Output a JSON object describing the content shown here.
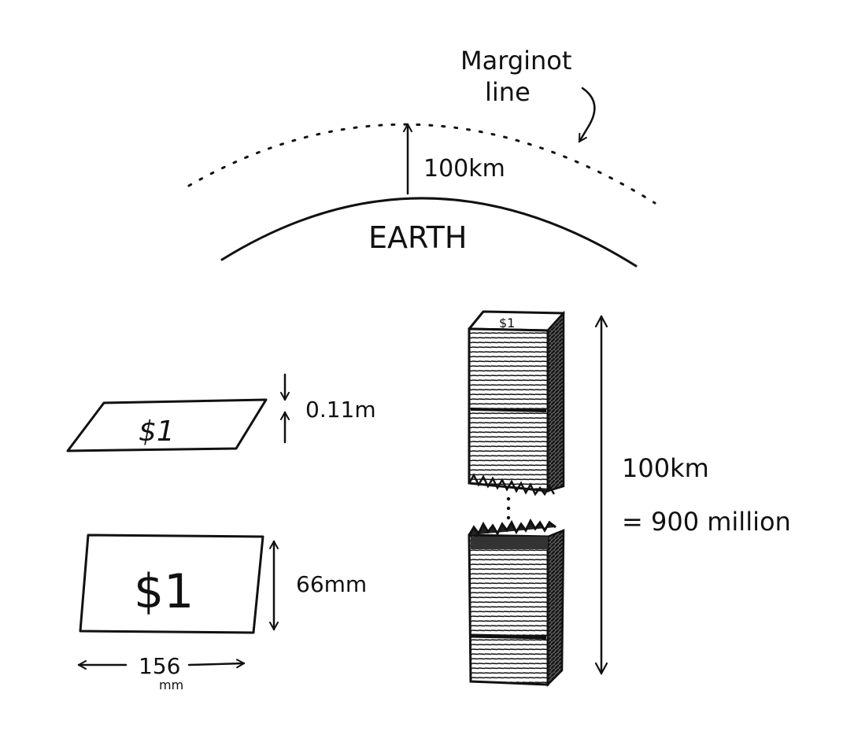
{
  "labels": {
    "marginot_line": [
      "Marginot",
      "line"
    ],
    "altitude": "100km",
    "earth": "EARTH",
    "thickness": "0.11m",
    "bill_tilted": "$1",
    "bill_flat": "$1",
    "bill_height": "66mm",
    "bill_width": "156",
    "bill_width_unit": "mm",
    "stack_top": "$1",
    "stack_height": "100km",
    "stack_count": "= 900 million"
  },
  "colors": {
    "ink": "#111111",
    "paper": "#ffffff"
  }
}
